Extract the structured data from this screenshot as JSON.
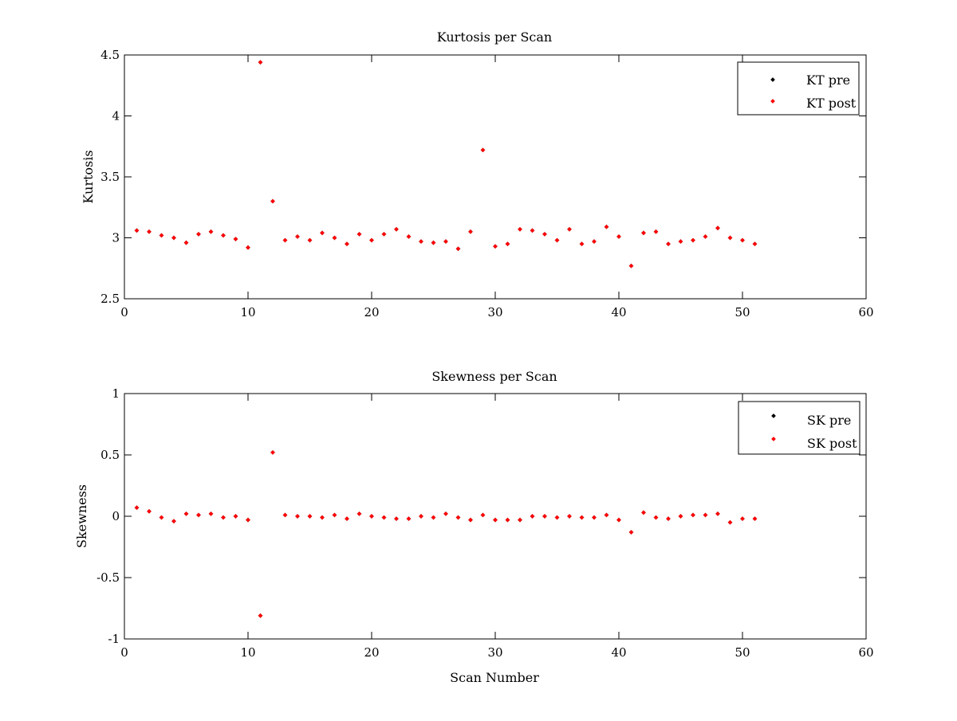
{
  "chart_data": [
    {
      "type": "scatter",
      "title": "Kurtosis per Scan",
      "xlabel": "",
      "ylabel": "Kurtosis",
      "xlim": [
        0,
        60
      ],
      "ylim": [
        2.5,
        4.5
      ],
      "xticks": [
        0,
        10,
        20,
        30,
        40,
        50,
        60
      ],
      "yticks": [
        2.5,
        3,
        3.5,
        4,
        4.5
      ],
      "x_tick_labels": [
        "0",
        "10",
        "20",
        "30",
        "40",
        "50",
        "60"
      ],
      "y_tick_labels": [
        "2.5",
        "3",
        "3.5",
        "4",
        "4.5"
      ],
      "grid": false,
      "legend_position": "top-right",
      "x": [
        1,
        2,
        3,
        4,
        5,
        6,
        7,
        8,
        9,
        10,
        11,
        12,
        13,
        14,
        15,
        16,
        17,
        18,
        19,
        20,
        21,
        22,
        23,
        24,
        25,
        26,
        27,
        28,
        29,
        30,
        31,
        32,
        33,
        34,
        35,
        36,
        37,
        38,
        39,
        40,
        41,
        42,
        43,
        44,
        45,
        46,
        47,
        48,
        49,
        50,
        51
      ],
      "series": [
        {
          "name": "KT pre",
          "color": "#000000",
          "values": [
            3.06,
            3.05,
            3.02,
            3.0,
            2.96,
            3.03,
            3.05,
            3.02,
            2.99,
            2.92,
            4.44,
            3.3,
            2.98,
            3.01,
            2.98,
            3.04,
            3.0,
            2.95,
            3.03,
            2.98,
            3.03,
            3.07,
            3.01,
            2.97,
            2.96,
            2.97,
            2.91,
            3.05,
            3.72,
            2.93,
            2.95,
            3.07,
            3.06,
            3.03,
            2.98,
            3.07,
            2.95,
            2.97,
            3.09,
            3.01,
            2.77,
            3.04,
            3.05,
            2.95,
            2.97,
            2.98,
            3.01,
            3.08,
            3.0,
            2.98,
            2.95
          ]
        },
        {
          "name": "KT post",
          "color": "#ff0000",
          "values": [
            3.06,
            3.05,
            3.02,
            3.0,
            2.96,
            3.03,
            3.05,
            3.02,
            2.99,
            2.92,
            4.44,
            3.3,
            2.98,
            3.01,
            2.98,
            3.04,
            3.0,
            2.95,
            3.03,
            2.98,
            3.03,
            3.07,
            3.01,
            2.97,
            2.96,
            2.97,
            2.91,
            3.05,
            3.72,
            2.93,
            2.95,
            3.07,
            3.06,
            3.03,
            2.98,
            3.07,
            2.95,
            2.97,
            3.09,
            3.01,
            2.77,
            3.04,
            3.05,
            2.95,
            2.97,
            2.98,
            3.01,
            3.08,
            3.0,
            2.98,
            2.95
          ]
        }
      ]
    },
    {
      "type": "scatter",
      "title": "Skewness per Scan",
      "xlabel": "Scan Number",
      "ylabel": "Skewness",
      "xlim": [
        0,
        60
      ],
      "ylim": [
        -1,
        1
      ],
      "xticks": [
        0,
        10,
        20,
        30,
        40,
        50,
        60
      ],
      "yticks": [
        -1,
        -0.5,
        0,
        0.5,
        1
      ],
      "x_tick_labels": [
        "0",
        "10",
        "20",
        "30",
        "40",
        "50",
        "60"
      ],
      "y_tick_labels": [
        "-1",
        "-0.5",
        "0",
        "0.5",
        "1"
      ],
      "grid": false,
      "legend_position": "top-right",
      "x": [
        1,
        2,
        3,
        4,
        5,
        6,
        7,
        8,
        9,
        10,
        11,
        12,
        13,
        14,
        15,
        16,
        17,
        18,
        19,
        20,
        21,
        22,
        23,
        24,
        25,
        26,
        27,
        28,
        29,
        30,
        31,
        32,
        33,
        34,
        35,
        36,
        37,
        38,
        39,
        40,
        41,
        42,
        43,
        44,
        45,
        46,
        47,
        48,
        49,
        50,
        51
      ],
      "series": [
        {
          "name": "SK pre",
          "color": "#000000",
          "values": [
            0.07,
            0.04,
            -0.01,
            -0.04,
            0.02,
            0.01,
            0.02,
            -0.01,
            0.0,
            -0.03,
            -0.81,
            0.52,
            0.01,
            0.0,
            0.0,
            -0.01,
            0.01,
            -0.02,
            0.02,
            0.0,
            -0.01,
            -0.02,
            -0.02,
            0.0,
            -0.01,
            0.02,
            -0.01,
            -0.03,
            0.01,
            -0.03,
            -0.03,
            -0.03,
            0.0,
            0.0,
            -0.01,
            0.0,
            -0.01,
            -0.01,
            0.01,
            -0.03,
            -0.13,
            0.03,
            -0.01,
            -0.02,
            0.0,
            0.01,
            0.01,
            0.02,
            -0.05,
            -0.02,
            -0.02
          ]
        },
        {
          "name": "SK post",
          "color": "#ff0000",
          "values": [
            0.07,
            0.04,
            -0.01,
            -0.04,
            0.02,
            0.01,
            0.02,
            -0.01,
            0.0,
            -0.03,
            -0.81,
            0.52,
            0.01,
            0.0,
            0.0,
            -0.01,
            0.01,
            -0.02,
            0.02,
            0.0,
            -0.01,
            -0.02,
            -0.02,
            0.0,
            -0.01,
            0.02,
            -0.01,
            -0.03,
            0.01,
            -0.03,
            -0.03,
            -0.03,
            0.0,
            0.0,
            -0.01,
            0.0,
            -0.01,
            -0.01,
            0.01,
            -0.03,
            -0.13,
            0.03,
            -0.01,
            -0.02,
            0.0,
            0.01,
            0.01,
            0.02,
            -0.05,
            -0.02,
            -0.02
          ]
        }
      ]
    }
  ]
}
